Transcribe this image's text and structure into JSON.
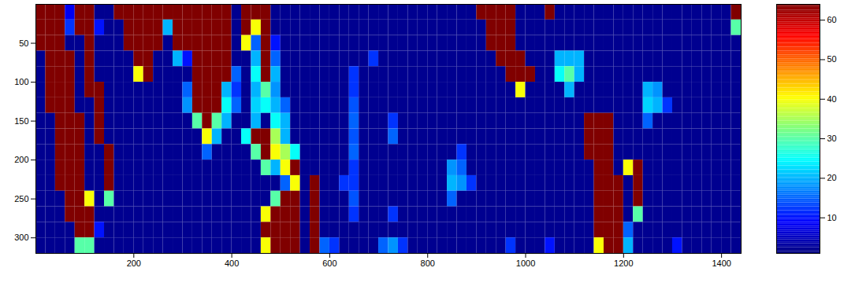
{
  "chart_data": {
    "type": "heatmap",
    "xlim": [
      0,
      1440
    ],
    "ylim": [
      320,
      0
    ],
    "xticks": [
      200,
      400,
      600,
      800,
      1000,
      1200,
      1400
    ],
    "yticks": [
      50,
      100,
      150,
      200,
      250,
      300
    ],
    "x_edges": [
      0,
      20,
      40,
      60,
      80,
      100,
      120,
      140,
      160,
      180,
      200,
      220,
      240,
      260,
      280,
      300,
      320,
      340,
      360,
      380,
      400,
      420,
      440,
      460,
      480,
      500,
      520,
      540,
      560,
      580,
      600,
      620,
      640,
      660,
      680,
      700,
      720,
      740,
      760,
      780,
      800,
      820,
      840,
      860,
      880,
      900,
      920,
      940,
      960,
      980,
      1000,
      1020,
      1040,
      1060,
      1080,
      1100,
      1120,
      1140,
      1160,
      1180,
      1200,
      1220,
      1240,
      1260,
      1280,
      1300,
      1320,
      1340,
      1360,
      1380,
      1400,
      1420,
      1440
    ],
    "y_edges": [
      0,
      20,
      40,
      60,
      80,
      100,
      120,
      140,
      160,
      180,
      200,
      220,
      240,
      260,
      280,
      300,
      320
    ],
    "z": [
      [
        64,
        64,
        64,
        8,
        64,
        64,
        2,
        2,
        64,
        64,
        64,
        64,
        64,
        64,
        64,
        64,
        64,
        64,
        64,
        64,
        2,
        64,
        64,
        64,
        2,
        2,
        2,
        2,
        2,
        2,
        2,
        2,
        2,
        2,
        2,
        2,
        2,
        2,
        2,
        2,
        2,
        2,
        2,
        2,
        2,
        64,
        64,
        64,
        64,
        2,
        2,
        2,
        64,
        2,
        2,
        2,
        2,
        2,
        2,
        2,
        2,
        2,
        2,
        2,
        2,
        2,
        2,
        2,
        2,
        2,
        2,
        64
      ],
      [
        64,
        64,
        64,
        12,
        64,
        64,
        10,
        2,
        2,
        64,
        64,
        64,
        64,
        20,
        64,
        64,
        64,
        64,
        64,
        64,
        2,
        64,
        40,
        64,
        2,
        2,
        2,
        2,
        2,
        2,
        2,
        2,
        2,
        2,
        2,
        2,
        2,
        2,
        2,
        2,
        2,
        2,
        2,
        2,
        2,
        2,
        64,
        64,
        64,
        2,
        2,
        2,
        2,
        2,
        2,
        2,
        2,
        2,
        2,
        2,
        2,
        2,
        2,
        2,
        2,
        2,
        2,
        2,
        2,
        2,
        2,
        30
      ],
      [
        64,
        64,
        64,
        2,
        2,
        64,
        2,
        2,
        2,
        64,
        64,
        64,
        64,
        2,
        64,
        64,
        64,
        64,
        64,
        64,
        2,
        40,
        15,
        64,
        10,
        2,
        2,
        2,
        2,
        2,
        2,
        2,
        2,
        2,
        2,
        2,
        2,
        2,
        2,
        2,
        2,
        2,
        2,
        2,
        2,
        2,
        64,
        64,
        64,
        2,
        2,
        2,
        2,
        2,
        2,
        2,
        2,
        2,
        2,
        2,
        2,
        2,
        2,
        2,
        2,
        2,
        2,
        2,
        2,
        2,
        2,
        2
      ],
      [
        2,
        64,
        64,
        64,
        2,
        64,
        2,
        2,
        2,
        2,
        64,
        64,
        2,
        2,
        20,
        10,
        64,
        64,
        64,
        64,
        2,
        2,
        20,
        64,
        15,
        2,
        2,
        2,
        2,
        2,
        2,
        2,
        2,
        2,
        12,
        2,
        2,
        2,
        2,
        2,
        2,
        2,
        2,
        2,
        2,
        2,
        2,
        64,
        64,
        64,
        2,
        2,
        2,
        20,
        20,
        20,
        2,
        2,
        2,
        2,
        2,
        2,
        2,
        2,
        2,
        2,
        2,
        2,
        2,
        2,
        2,
        2
      ],
      [
        2,
        64,
        64,
        64,
        2,
        64,
        2,
        2,
        2,
        2,
        40,
        64,
        2,
        2,
        2,
        2,
        64,
        64,
        64,
        64,
        15,
        2,
        25,
        64,
        20,
        2,
        2,
        2,
        2,
        2,
        2,
        2,
        12,
        2,
        2,
        2,
        2,
        2,
        2,
        2,
        2,
        2,
        2,
        2,
        2,
        2,
        2,
        2,
        64,
        64,
        64,
        2,
        2,
        25,
        30,
        20,
        2,
        2,
        2,
        2,
        2,
        2,
        2,
        2,
        2,
        2,
        2,
        2,
        2,
        2,
        2,
        2
      ],
      [
        2,
        64,
        64,
        64,
        2,
        64,
        64,
        2,
        2,
        2,
        2,
        2,
        2,
        2,
        2,
        15,
        64,
        64,
        64,
        20,
        12,
        2,
        20,
        30,
        18,
        2,
        2,
        2,
        2,
        2,
        2,
        2,
        12,
        2,
        2,
        2,
        2,
        2,
        2,
        2,
        2,
        2,
        2,
        2,
        2,
        2,
        2,
        2,
        2,
        40,
        2,
        2,
        2,
        2,
        20,
        2,
        2,
        2,
        2,
        2,
        2,
        2,
        20,
        18,
        2,
        2,
        2,
        2,
        2,
        2,
        2,
        2
      ],
      [
        2,
        64,
        64,
        64,
        2,
        2,
        64,
        2,
        2,
        2,
        2,
        2,
        2,
        2,
        2,
        18,
        64,
        64,
        64,
        25,
        15,
        2,
        22,
        25,
        20,
        15,
        2,
        2,
        2,
        2,
        2,
        2,
        14,
        2,
        2,
        2,
        2,
        2,
        2,
        2,
        2,
        2,
        2,
        2,
        2,
        2,
        2,
        2,
        2,
        2,
        2,
        2,
        2,
        2,
        2,
        2,
        2,
        2,
        2,
        2,
        2,
        2,
        22,
        20,
        12,
        2,
        2,
        2,
        2,
        2,
        2,
        2
      ],
      [
        2,
        2,
        64,
        64,
        64,
        2,
        64,
        2,
        2,
        2,
        2,
        2,
        2,
        2,
        2,
        2,
        30,
        64,
        30,
        20,
        2,
        2,
        20,
        2,
        25,
        20,
        2,
        2,
        2,
        2,
        2,
        2,
        15,
        2,
        2,
        2,
        12,
        2,
        2,
        2,
        2,
        2,
        2,
        2,
        2,
        2,
        2,
        2,
        2,
        2,
        2,
        2,
        2,
        2,
        2,
        2,
        64,
        64,
        64,
        2,
        2,
        2,
        15,
        2,
        2,
        2,
        2,
        2,
        2,
        2,
        2,
        2
      ],
      [
        2,
        2,
        64,
        64,
        64,
        2,
        64,
        2,
        2,
        2,
        2,
        2,
        2,
        2,
        2,
        2,
        2,
        40,
        20,
        2,
        2,
        25,
        64,
        64,
        35,
        20,
        2,
        2,
        2,
        2,
        2,
        2,
        14,
        2,
        2,
        2,
        15,
        2,
        2,
        2,
        2,
        2,
        2,
        2,
        2,
        2,
        2,
        2,
        2,
        2,
        2,
        2,
        2,
        2,
        2,
        2,
        64,
        64,
        64,
        2,
        2,
        2,
        2,
        2,
        2,
        2,
        2,
        2,
        2,
        2,
        2,
        2
      ],
      [
        2,
        2,
        64,
        64,
        64,
        2,
        2,
        64,
        2,
        2,
        2,
        2,
        2,
        2,
        2,
        2,
        2,
        15,
        2,
        2,
        2,
        2,
        30,
        64,
        40,
        35,
        25,
        2,
        2,
        2,
        2,
        2,
        15,
        2,
        2,
        2,
        2,
        2,
        2,
        2,
        2,
        2,
        2,
        12,
        2,
        2,
        2,
        2,
        2,
        2,
        2,
        2,
        2,
        2,
        2,
        2,
        64,
        64,
        64,
        2,
        2,
        2,
        2,
        2,
        2,
        2,
        2,
        2,
        2,
        2,
        2,
        2
      ],
      [
        2,
        2,
        64,
        64,
        64,
        2,
        2,
        64,
        2,
        2,
        2,
        2,
        2,
        2,
        2,
        2,
        2,
        2,
        2,
        2,
        2,
        2,
        2,
        30,
        20,
        40,
        64,
        2,
        2,
        2,
        2,
        2,
        12,
        2,
        2,
        2,
        2,
        2,
        2,
        2,
        2,
        2,
        18,
        15,
        2,
        2,
        2,
        2,
        2,
        2,
        2,
        2,
        2,
        2,
        2,
        2,
        2,
        64,
        64,
        2,
        40,
        64,
        2,
        2,
        2,
        2,
        2,
        2,
        2,
        2,
        2,
        2
      ],
      [
        2,
        2,
        64,
        64,
        64,
        2,
        2,
        64,
        2,
        2,
        2,
        2,
        2,
        2,
        2,
        2,
        2,
        2,
        2,
        2,
        2,
        2,
        2,
        2,
        2,
        15,
        40,
        2,
        64,
        2,
        2,
        12,
        12,
        2,
        2,
        2,
        2,
        2,
        2,
        2,
        2,
        2,
        20,
        18,
        12,
        2,
        2,
        2,
        2,
        2,
        2,
        2,
        2,
        2,
        2,
        2,
        2,
        64,
        64,
        64,
        2,
        64,
        2,
        2,
        2,
        2,
        2,
        2,
        2,
        2,
        2,
        2
      ],
      [
        2,
        2,
        2,
        64,
        64,
        40,
        2,
        30,
        2,
        2,
        2,
        2,
        2,
        2,
        2,
        2,
        2,
        2,
        2,
        2,
        2,
        2,
        2,
        2,
        30,
        64,
        64,
        2,
        64,
        2,
        2,
        2,
        14,
        2,
        2,
        2,
        2,
        2,
        2,
        2,
        2,
        2,
        15,
        2,
        2,
        2,
        2,
        2,
        2,
        2,
        2,
        2,
        2,
        2,
        2,
        2,
        2,
        64,
        64,
        64,
        2,
        64,
        2,
        2,
        2,
        2,
        2,
        2,
        2,
        2,
        2,
        2
      ],
      [
        2,
        2,
        2,
        64,
        64,
        64,
        2,
        2,
        2,
        2,
        2,
        2,
        2,
        2,
        2,
        2,
        2,
        2,
        2,
        2,
        2,
        2,
        2,
        40,
        64,
        64,
        64,
        2,
        64,
        2,
        2,
        2,
        12,
        2,
        2,
        2,
        12,
        2,
        2,
        2,
        2,
        2,
        2,
        2,
        2,
        2,
        2,
        2,
        2,
        2,
        2,
        2,
        2,
        2,
        2,
        2,
        2,
        64,
        64,
        64,
        2,
        30,
        2,
        2,
        2,
        2,
        2,
        2,
        2,
        2,
        2,
        2
      ],
      [
        2,
        2,
        2,
        2,
        64,
        64,
        10,
        2,
        2,
        2,
        2,
        2,
        2,
        2,
        2,
        2,
        2,
        2,
        2,
        2,
        2,
        2,
        2,
        64,
        64,
        64,
        64,
        2,
        64,
        2,
        2,
        2,
        2,
        2,
        2,
        2,
        2,
        2,
        2,
        2,
        2,
        2,
        2,
        2,
        2,
        2,
        2,
        2,
        2,
        2,
        2,
        2,
        2,
        2,
        2,
        2,
        2,
        64,
        64,
        64,
        15,
        2,
        2,
        2,
        2,
        2,
        2,
        2,
        2,
        2,
        2,
        2
      ],
      [
        2,
        2,
        2,
        2,
        30,
        30,
        2,
        2,
        2,
        2,
        2,
        2,
        2,
        2,
        2,
        2,
        2,
        2,
        2,
        2,
        2,
        2,
        2,
        40,
        64,
        64,
        64,
        2,
        64,
        15,
        12,
        2,
        2,
        2,
        2,
        15,
        18,
        12,
        2,
        2,
        2,
        2,
        2,
        2,
        2,
        2,
        2,
        2,
        12,
        2,
        2,
        2,
        10,
        2,
        2,
        2,
        2,
        40,
        64,
        64,
        20,
        2,
        2,
        2,
        2,
        10,
        2,
        2,
        2,
        2,
        2,
        2
      ]
    ],
    "colorbar_lim": [
      1,
      64
    ],
    "colorbar_ticks": [
      10,
      20,
      30,
      40,
      50,
      60
    ]
  }
}
